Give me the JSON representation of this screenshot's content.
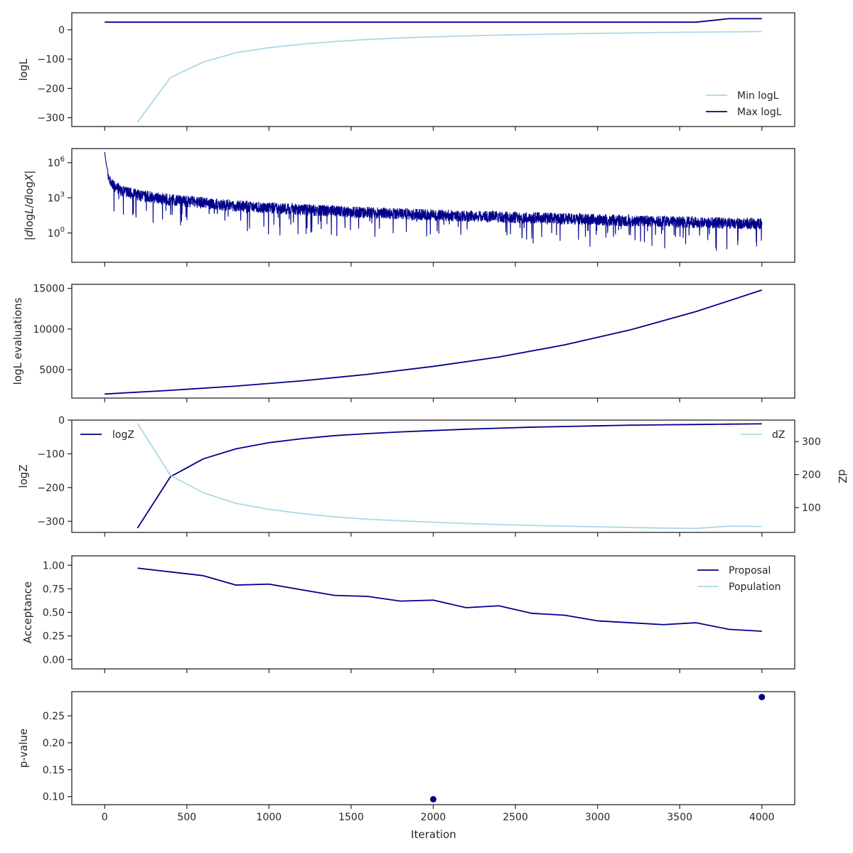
{
  "colors": {
    "dark": "#00008b",
    "light": "#add8e6",
    "frame": "#262626"
  },
  "x_axis": {
    "label": "Iteration",
    "ticks": [
      0,
      500,
      1000,
      1500,
      2000,
      2500,
      3000,
      3500,
      4000
    ],
    "lim": [
      -200,
      4200
    ]
  },
  "chart_data": [
    {
      "type": "line",
      "ylabel": "logL",
      "ylim": [
        -330,
        58
      ],
      "yticks": [
        {
          "v": 0,
          "label": "0"
        },
        {
          "v": -100,
          "label": "−100"
        },
        {
          "v": -200,
          "label": "−200"
        },
        {
          "v": -300,
          "label": "−300"
        }
      ],
      "legend": "bottom-right",
      "series": [
        {
          "name": "Min logL",
          "color": "light",
          "x": [
            200,
            400,
            600,
            800,
            1000,
            1200,
            1400,
            1600,
            1800,
            2000,
            2200,
            2400,
            2600,
            2800,
            3000,
            3200,
            3400,
            3600,
            3800,
            4000
          ],
          "values": [
            -315,
            -163,
            -110,
            -78,
            -61,
            -49,
            -40,
            -33,
            -28,
            -24,
            -21,
            -18,
            -16,
            -14,
            -12,
            -11,
            -9,
            -8,
            -7,
            -6
          ]
        },
        {
          "name": "Max logL",
          "color": "dark",
          "x": [
            0,
            3600,
            3800,
            4000
          ],
          "values": [
            26,
            26,
            38,
            38
          ]
        }
      ]
    },
    {
      "type": "line",
      "ylabel": "|dlogL/dlogX|",
      "yscale": "log",
      "ylim_log10": [
        -2.5,
        7.2
      ],
      "yticks": [
        {
          "v": 6,
          "label": "10",
          "exp": "6"
        },
        {
          "v": 3,
          "label": "10",
          "exp": "3"
        },
        {
          "v": 0,
          "label": "10",
          "exp": "0"
        }
      ],
      "envelope_x": [
        0,
        10,
        30,
        60,
        100,
        200,
        400,
        700,
        1000,
        1500,
        2000,
        2500,
        3000,
        3500,
        4000
      ],
      "envelope_log10": [
        6.9,
        5.8,
        4.8,
        4.2,
        3.9,
        3.5,
        3.1,
        2.7,
        2.4,
        2.05,
        1.8,
        1.6,
        1.4,
        1.2,
        1.05
      ],
      "spread_log10": 0.9,
      "series": [
        {
          "name": "",
          "color": "dark"
        }
      ]
    },
    {
      "type": "line",
      "ylabel": "logL evaluations",
      "ylim": [
        1500,
        15500
      ],
      "yticks": [
        {
          "v": 15000,
          "label": "15000"
        },
        {
          "v": 10000,
          "label": "10000"
        },
        {
          "v": 5000,
          "label": "5000"
        }
      ],
      "series": [
        {
          "name": "",
          "color": "dark",
          "x": [
            0,
            400,
            800,
            1200,
            1600,
            2000,
            2400,
            2800,
            3200,
            3600,
            4000
          ],
          "values": [
            2000,
            2450,
            2980,
            3620,
            4420,
            5400,
            6550,
            8050,
            9900,
            12150,
            14800
          ]
        }
      ]
    },
    {
      "type": "line",
      "ylabel": "logZ",
      "ylim": [
        -333,
        0
      ],
      "yticks": [
        {
          "v": 0,
          "label": "0"
        },
        {
          "v": -100,
          "label": "−100"
        },
        {
          "v": -200,
          "label": "−200"
        },
        {
          "v": -300,
          "label": "−300"
        }
      ],
      "y2label": "dZ",
      "y2lim": [
        25,
        365
      ],
      "y2ticks": [
        {
          "v": 300,
          "label": "300"
        },
        {
          "v": 200,
          "label": "200"
        },
        {
          "v": 100,
          "label": "100"
        }
      ],
      "series": [
        {
          "name": "logZ",
          "color": "dark",
          "axis": "left",
          "legend": "top-left",
          "x": [
            200,
            400,
            600,
            800,
            1000,
            1200,
            1400,
            1600,
            1800,
            2000,
            2200,
            2400,
            2600,
            2800,
            3000,
            3200,
            3400,
            3600,
            3800,
            4000
          ],
          "values": [
            -320,
            -168,
            -115,
            -85,
            -67,
            -55,
            -46,
            -40,
            -35,
            -31,
            -27,
            -24,
            -21,
            -19,
            -17,
            -15,
            -14,
            -13,
            -12,
            -11
          ]
        },
        {
          "name": "dZ",
          "color": "light",
          "axis": "right",
          "legend": "top-right",
          "x": [
            200,
            400,
            600,
            800,
            1000,
            1200,
            1400,
            1600,
            1800,
            2000,
            2200,
            2400,
            2600,
            2800,
            3000,
            3200,
            3400,
            3600,
            3800,
            4000
          ],
          "values": [
            355,
            198,
            145,
            113,
            95,
            82,
            72,
            65,
            60,
            56,
            52,
            49,
            46,
            44,
            42,
            40,
            38,
            37,
            44,
            43
          ]
        }
      ]
    },
    {
      "type": "line",
      "ylabel": "Acceptance",
      "ylim": [
        -0.1,
        1.1
      ],
      "yticks": [
        {
          "v": 1.0,
          "label": "1.00"
        },
        {
          "v": 0.75,
          "label": "0.75"
        },
        {
          "v": 0.5,
          "label": "0.50"
        },
        {
          "v": 0.25,
          "label": "0.25"
        },
        {
          "v": 0.0,
          "label": "0.00"
        }
      ],
      "legend": "top-right",
      "series": [
        {
          "name": "Proposal",
          "color": "dark",
          "x": [
            200,
            600,
            800,
            1000,
            1200,
            1400,
            1600,
            1800,
            2000,
            2200,
            2400,
            2600,
            2800,
            3000,
            3200,
            3400,
            3600,
            3800,
            4000
          ],
          "values": [
            0.97,
            0.89,
            0.79,
            0.8,
            0.74,
            0.68,
            0.67,
            0.62,
            0.63,
            0.55,
            0.57,
            0.49,
            0.47,
            0.41,
            0.39,
            0.37,
            0.39,
            0.32,
            0.3
          ]
        },
        {
          "name": "Population",
          "color": "light",
          "x": [],
          "values": []
        }
      ]
    },
    {
      "type": "scatter",
      "ylabel": "p-value",
      "ylim": [
        0.085,
        0.295
      ],
      "yticks": [
        {
          "v": 0.25,
          "label": "0.25"
        },
        {
          "v": 0.2,
          "label": "0.20"
        },
        {
          "v": 0.15,
          "label": "0.15"
        },
        {
          "v": 0.1,
          "label": "0.10"
        }
      ],
      "series": [
        {
          "name": "",
          "color": "dark",
          "x": [
            2000,
            4000
          ],
          "values": [
            0.095,
            0.285
          ]
        }
      ]
    }
  ]
}
